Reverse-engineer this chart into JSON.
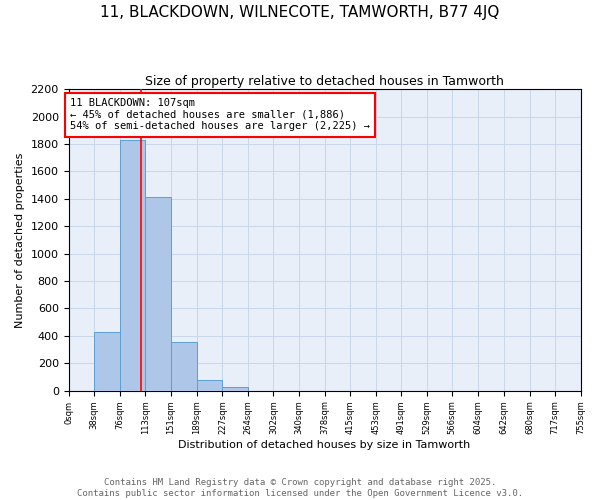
{
  "title": "11, BLACKDOWN, WILNECOTE, TAMWORTH, B77 4JQ",
  "subtitle": "Size of property relative to detached houses in Tamworth",
  "xlabel": "Distribution of detached houses by size in Tamworth",
  "ylabel": "Number of detached properties",
  "bar_edges": [
    0,
    38,
    76,
    113,
    151,
    189,
    227,
    264,
    302,
    340,
    378,
    415,
    453,
    491,
    529,
    566,
    604,
    642,
    680,
    717,
    755
  ],
  "bar_heights": [
    0,
    430,
    1830,
    1415,
    355,
    75,
    25,
    0,
    0,
    0,
    0,
    0,
    0,
    0,
    0,
    0,
    0,
    0,
    0,
    0
  ],
  "bar_color": "#aec6e8",
  "bar_edge_color": "#5a9fd4",
  "vline_x": 107,
  "vline_color": "red",
  "annotation_line1": "11 BLACKDOWN: 107sqm",
  "annotation_line2": "← 45% of detached houses are smaller (1,886)",
  "annotation_line3": "54% of semi-detached houses are larger (2,225) →",
  "annotation_box_edgecolor": "red",
  "annotation_box_facecolor": "white",
  "ylim": [
    0,
    2200
  ],
  "yticks": [
    0,
    200,
    400,
    600,
    800,
    1000,
    1200,
    1400,
    1600,
    1800,
    2000,
    2200
  ],
  "xtick_labels": [
    "0sqm",
    "38sqm",
    "76sqm",
    "113sqm",
    "151sqm",
    "189sqm",
    "227sqm",
    "264sqm",
    "302sqm",
    "340sqm",
    "378sqm",
    "415sqm",
    "453sqm",
    "491sqm",
    "529sqm",
    "566sqm",
    "604sqm",
    "642sqm",
    "680sqm",
    "717sqm",
    "755sqm"
  ],
  "footer_line1": "Contains HM Land Registry data © Crown copyright and database right 2025.",
  "footer_line2": "Contains public sector information licensed under the Open Government Licence v3.0.",
  "grid_color": "#c8d8ea",
  "bg_color": "#e8eff8",
  "title_fontsize": 11,
  "subtitle_fontsize": 9,
  "annotation_fontsize": 7.5,
  "footer_fontsize": 6.5,
  "ylabel_fontsize": 8,
  "xlabel_fontsize": 8
}
